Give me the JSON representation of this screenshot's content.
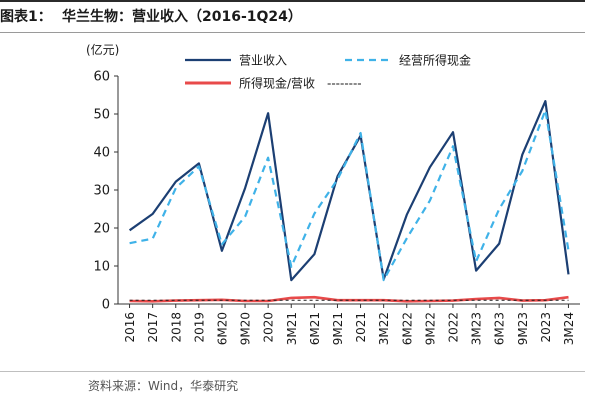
{
  "header": {
    "prefix": "图表1：",
    "title": "华兰生物：营业收入（2016-1Q24）"
  },
  "source": "资料来源：Wind，华泰研究",
  "chart_data": {
    "type": "line",
    "y_unit": "(亿元)",
    "ylim": [
      0,
      60
    ],
    "yticks": [
      0,
      10,
      20,
      30,
      40,
      50,
      60
    ],
    "categories": [
      "2016",
      "2017",
      "2018",
      "2019",
      "6M20",
      "9M20",
      "2020",
      "3M21",
      "6M21",
      "9M21",
      "2021",
      "3M22",
      "6M22",
      "9M22",
      "2022",
      "3M23",
      "6M23",
      "9M23",
      "2023",
      "3M24"
    ],
    "grid": false,
    "legend_position": "top",
    "series": [
      {
        "name": "营业收入",
        "style": "solid",
        "color": "#1c3f73",
        "values": [
          19.4,
          23.7,
          32.2,
          37.0,
          14.0,
          30.5,
          50.2,
          6.3,
          13.1,
          33.6,
          44.3,
          6.5,
          23.5,
          36.0,
          45.2,
          8.8,
          15.9,
          39.3,
          53.4,
          7.8
        ]
      },
      {
        "name": "经营所得现金",
        "style": "dashed",
        "color": "#3fb2e8",
        "values": [
          16.0,
          17.2,
          30.5,
          36.2,
          15.7,
          23.0,
          38.5,
          9.8,
          23.8,
          32.8,
          45.0,
          6.3,
          17.3,
          27.2,
          41.5,
          11.2,
          25.0,
          35.0,
          51.0,
          14.0
        ]
      },
      {
        "name": "所得现金/营收",
        "style": "solid",
        "color": "#e84a4a",
        "values": [
          0.8,
          0.7,
          0.9,
          1.0,
          1.1,
          0.8,
          0.8,
          1.6,
          1.8,
          1.0,
          1.0,
          1.0,
          0.7,
          0.8,
          0.9,
          1.3,
          1.6,
          0.9,
          1.0,
          1.8
        ]
      },
      {
        "name": "所得现金/营收",
        "style": "dotted",
        "color": "#1a1a1a",
        "values": [
          1.0,
          1.0,
          1.0,
          1.0,
          1.0,
          1.0,
          1.0,
          1.0,
          1.0,
          1.0,
          1.0,
          1.0,
          1.0,
          1.0,
          1.0,
          1.0,
          1.0,
          1.0,
          1.0,
          1.0
        ]
      }
    ],
    "legend": [
      {
        "label": "营业收入",
        "style": "solid",
        "color": "#1c3f73"
      },
      {
        "label": "经营所得现金",
        "style": "dashed",
        "color": "#3fb2e8"
      },
      {
        "label": "所得现金/营收",
        "style": "solid",
        "color": "#e84a4a",
        "suffix": "--------"
      }
    ]
  }
}
